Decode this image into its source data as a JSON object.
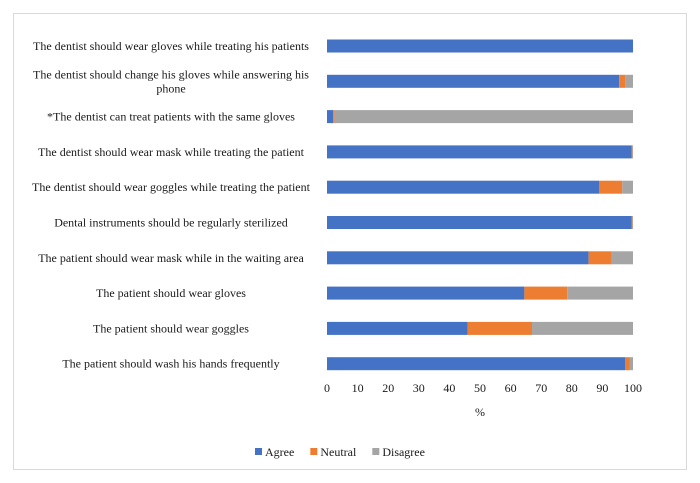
{
  "chart_data": {
    "type": "bar",
    "orientation": "horizontal",
    "stacked": true,
    "title": "",
    "xlabel": "%",
    "ylabel": "",
    "xlim": [
      0,
      100
    ],
    "x_ticks": [
      0,
      10,
      20,
      30,
      40,
      50,
      60,
      70,
      80,
      90,
      100
    ],
    "grid": false,
    "legend_position": "bottom",
    "categories": [
      "The dentist should wear gloves while treating his patients",
      "The dentist should change his gloves while answering his phone",
      "*The dentist can treat patients with the same gloves",
      "The dentist should wear mask while treating the patient",
      "The dentist should wear goggles while treating the patient",
      "Dental instruments should be regularly sterilized",
      "The patient should wear mask while in the waiting area",
      "The patient should wear gloves",
      "The patient should wear goggles",
      "The patient should wash his hands frequently"
    ],
    "series": [
      {
        "name": "Agree",
        "color": "#4472C4",
        "values": [
          100,
          95.5,
          2,
          99.5,
          89,
          99.5,
          85.5,
          64.5,
          46,
          97.5
        ]
      },
      {
        "name": "Neutral",
        "color": "#ED7D31",
        "values": [
          0,
          2,
          0.5,
          0.3,
          7.5,
          0.3,
          7.5,
          14,
          21,
          1.5
        ]
      },
      {
        "name": "Disagree",
        "color": "#A5A5A5",
        "values": [
          0,
          2.5,
          97.5,
          0.2,
          3.5,
          0.2,
          7,
          21.5,
          33,
          1
        ]
      }
    ]
  }
}
